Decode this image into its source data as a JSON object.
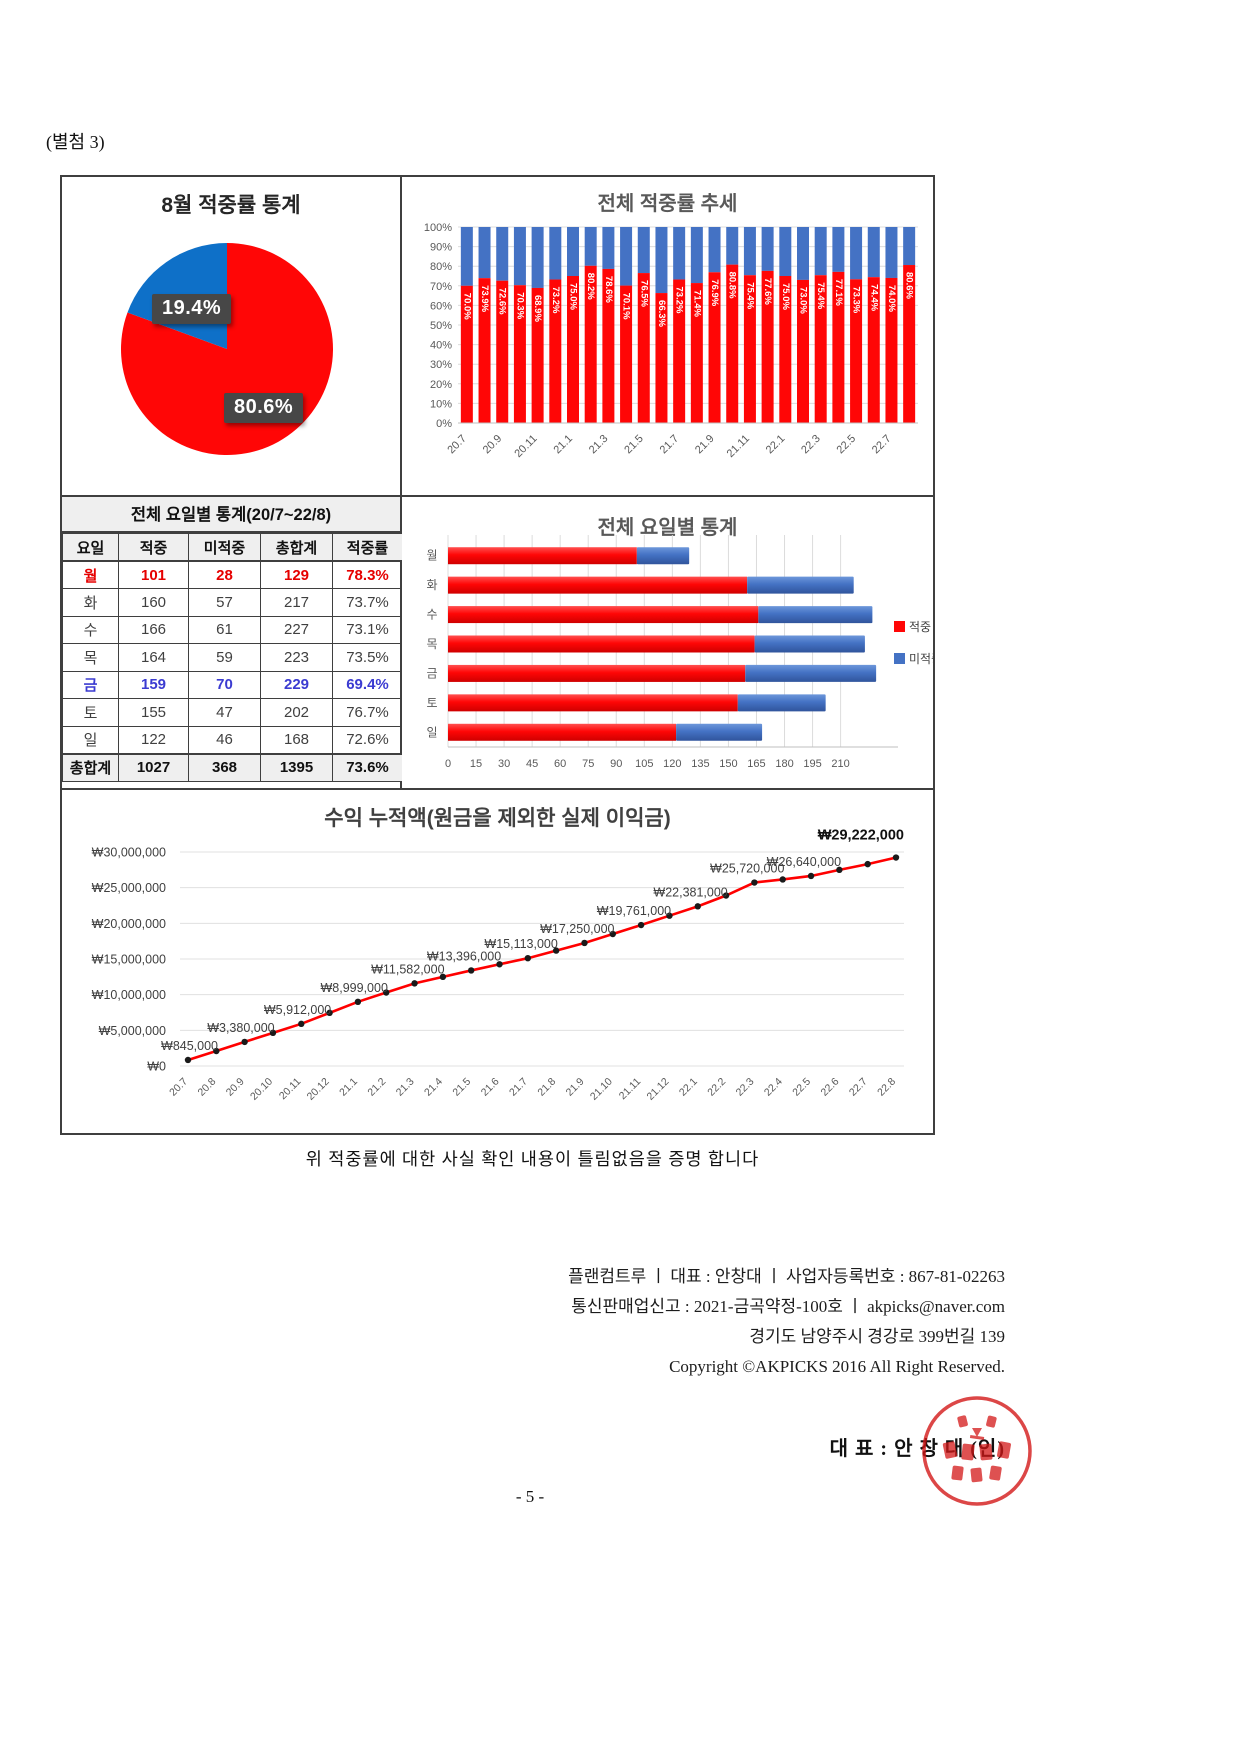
{
  "page": {
    "attachment_label": "(별첨 3)",
    "certify_text": "위 적중률에 대한 사실 확인 내용이 틀림없음을 증명 합니다",
    "footer_lines": [
      "플랜컴트루 ㅣ 대표 : 안창대 ㅣ 사업자등록번호 : 867-81-02263",
      "통신판매업신고 : 2021-금곡약정-100호 ㅣ akpicks@naver.com",
      "경기도 남양주시 경강로 399번길 139",
      "Copyright ©AKPICKS 2016 All Right Reserved."
    ],
    "signature": "대 표 : 안 창 대 (인)",
    "page_number": "- 5 -"
  },
  "colors": {
    "hit_red": "#ff0606",
    "miss_blue": "#4472c4",
    "pie_blue": "#0e70c8",
    "label_box_gray": "#474747",
    "title_gray": "#595959"
  },
  "table": {
    "title": "전체 요일별 통계(20/7~22/8)",
    "headers": [
      "요일",
      "적중",
      "미적중",
      "총합계",
      "적중률"
    ],
    "rows": [
      {
        "day": "월",
        "hit": "101",
        "miss": "28",
        "total": "129",
        "rate": "78.3%",
        "color": "red"
      },
      {
        "day": "화",
        "hit": "160",
        "miss": "57",
        "total": "217",
        "rate": "73.7%",
        "color": "default"
      },
      {
        "day": "수",
        "hit": "166",
        "miss": "61",
        "total": "227",
        "rate": "73.1%",
        "color": "default"
      },
      {
        "day": "목",
        "hit": "164",
        "miss": "59",
        "total": "223",
        "rate": "73.5%",
        "color": "default"
      },
      {
        "day": "금",
        "hit": "159",
        "miss": "70",
        "total": "229",
        "rate": "69.4%",
        "color": "blue"
      },
      {
        "day": "토",
        "hit": "155",
        "miss": "47",
        "total": "202",
        "rate": "76.7%",
        "color": "default"
      },
      {
        "day": "일",
        "hit": "122",
        "miss": "46",
        "total": "168",
        "rate": "72.6%",
        "color": "default"
      }
    ],
    "total_row": {
      "day": "총합계",
      "hit": "1027",
      "miss": "368",
      "total": "1395",
      "rate": "73.6%"
    }
  },
  "chart_data": [
    {
      "id": "august-pie",
      "type": "pie",
      "title": "8월 적중률 통계",
      "slices": [
        {
          "label": "적중",
          "value": 80.6,
          "display": "80.6%",
          "color": "#ff0606"
        },
        {
          "label": "미적중",
          "value": 19.4,
          "display": "19.4%",
          "color": "#0e70c8"
        }
      ],
      "legend_position": "none"
    },
    {
      "id": "overall-trend",
      "type": "bar",
      "subtype": "stacked-percent",
      "title": "전체 적중률 추세",
      "categories": [
        "20.7",
        "20.8",
        "20.9",
        "20.10",
        "20.11",
        "20.12",
        "21.1",
        "21.2",
        "21.3",
        "21.4",
        "21.5",
        "21.6",
        "21.7",
        "21.8",
        "21.9",
        "21.10",
        "21.11",
        "21.12",
        "22.1",
        "22.2",
        "22.3",
        "22.4",
        "22.5",
        "22.6",
        "22.7",
        "22.8"
      ],
      "series": [
        {
          "name": "적중",
          "color": "#ff0606",
          "values": [
            70.0,
            73.9,
            72.6,
            70.3,
            68.9,
            73.2,
            75.0,
            80.2,
            78.6,
            70.1,
            76.5,
            66.3,
            73.2,
            71.4,
            76.9,
            80.8,
            75.4,
            77.6,
            75.0,
            73.0,
            75.4,
            77.1,
            73.3,
            74.4,
            74.0,
            80.6
          ]
        },
        {
          "name": "미적중",
          "color": "#4472c4",
          "derived_as": "100% - 적중"
        }
      ],
      "yticks": [
        "0%",
        "10%",
        "20%",
        "30%",
        "40%",
        "50%",
        "60%",
        "70%",
        "80%",
        "90%",
        "100%"
      ],
      "ylim": [
        0,
        100
      ],
      "xtick_every": 2,
      "grid": true,
      "bar_labels": "hit percent, white, rotated 90°"
    },
    {
      "id": "weekday-bars",
      "type": "bar",
      "orientation": "horizontal",
      "title": "전체 요일별 통계",
      "categories": [
        "월",
        "화",
        "수",
        "목",
        "금",
        "토",
        "일"
      ],
      "series": [
        {
          "name": "적중",
          "color": "#ff0606",
          "values": [
            101,
            160,
            166,
            164,
            159,
            155,
            122
          ]
        },
        {
          "name": "미적중",
          "color": "#4472c4",
          "values": [
            28,
            57,
            61,
            59,
            70,
            47,
            46
          ]
        }
      ],
      "xticks": [
        0,
        15,
        30,
        45,
        60,
        75,
        90,
        105,
        120,
        135,
        150,
        165,
        180,
        195,
        210
      ],
      "xlim": [
        0,
        230
      ],
      "legend": [
        "적중",
        "미적중"
      ],
      "legend_position": "right",
      "grid": true
    },
    {
      "id": "profit-line",
      "type": "line",
      "title": "수익 누적액(원금을 제외한 실제 이익금)",
      "x": [
        "20.7",
        "20.8",
        "20.9",
        "20.10",
        "20.11",
        "20.12",
        "21.1",
        "21.2",
        "21.3",
        "21.4",
        "21.5",
        "21.6",
        "21.7",
        "21.8",
        "21.9",
        "21.10",
        "21.11",
        "21.12",
        "22.1",
        "22.2",
        "22.3",
        "22.4",
        "22.5",
        "22.6",
        "22.7",
        "22.8"
      ],
      "values": [
        845000,
        2100000,
        3380000,
        4650000,
        5912000,
        7450000,
        8999000,
        10300000,
        11582000,
        12500000,
        13396000,
        14260000,
        15113000,
        16180000,
        17250000,
        18500000,
        19761000,
        21070000,
        22381000,
        23900000,
        25720000,
        26150000,
        26640000,
        27500000,
        28300000,
        29222000
      ],
      "point_labels": [
        {
          "index": 0,
          "text": "₩845,000"
        },
        {
          "index": 2,
          "text": "₩3,380,000"
        },
        {
          "index": 4,
          "text": "₩5,912,000"
        },
        {
          "index": 6,
          "text": "₩8,999,000"
        },
        {
          "index": 8,
          "text": "₩11,582,000"
        },
        {
          "index": 10,
          "text": "₩13,396,000"
        },
        {
          "index": 12,
          "text": "₩15,113,000"
        },
        {
          "index": 14,
          "text": "₩17,250,000"
        },
        {
          "index": 16,
          "text": "₩19,761,000"
        },
        {
          "index": 18,
          "text": "₩22,381,000"
        },
        {
          "index": 20,
          "text": "₩25,720,000"
        },
        {
          "index": 22,
          "text": "₩26,640,000"
        },
        {
          "index": 25,
          "text": "₩29,222,000",
          "bold": true
        }
      ],
      "yticks": [
        "₩30,000,000",
        "₩25,000,000",
        "₩20,000,000",
        "₩15,000,000",
        "₩10,000,000",
        "₩5,000,000",
        "₩0"
      ],
      "ylim": [
        0,
        30000000
      ],
      "line_color": "#ff0000",
      "marker_color": "#1a1a1a",
      "grid": true
    }
  ]
}
